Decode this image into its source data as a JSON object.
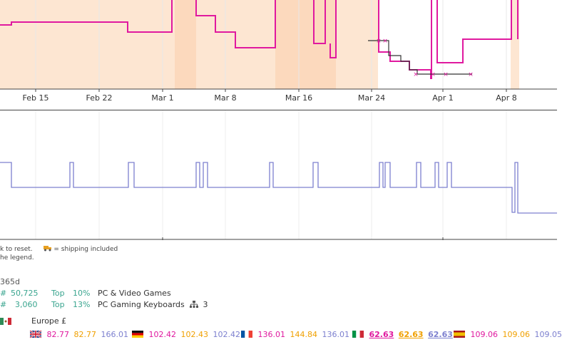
{
  "price_chart": {
    "x_ticks": [
      "Feb 15",
      "Feb 22",
      "Mar 1",
      "Mar 8",
      "Mar 16",
      "Mar 24",
      "Apr 1",
      "Apr 8"
    ],
    "colors": {
      "amazon_fill": "#fde6d2",
      "new": "#e0199f",
      "used": "#333333",
      "grid": "#e8e8e8"
    }
  },
  "rank_chart": {
    "color": "#7d80cf"
  },
  "chart_data": [
    {
      "type": "line",
      "title": "",
      "x": [
        "Feb 15",
        "Feb 22",
        "Mar 1",
        "Mar 8",
        "Mar 16",
        "Mar 24",
        "Apr 1",
        "Apr 8"
      ],
      "series": [
        {
          "values": [
            32,
            32,
            45,
            61,
            67,
            84,
            88,
            54
          ]
        },
        {
          "values": [
            null,
            null,
            null,
            null,
            null,
            57,
            104,
            null
          ]
        }
      ]
    },
    {
      "type": "line",
      "title": "",
      "x": [
        "Feb 15",
        "Feb 22",
        "Mar 1",
        "Mar 8",
        "Mar 16",
        "Mar 24",
        "Apr 1",
        "Apr 8"
      ],
      "series": [
        {
          "values": [
            263,
            263,
            263,
            263,
            263,
            263,
            263,
            299
          ]
        }
      ]
    }
  ],
  "hints": {
    "reset": "k to reset.",
    "shipping": "= shipping included",
    "legend": "he legend."
  },
  "stats": {
    "period": "365d",
    "rows": [
      {
        "prefix": "#",
        "rank": "50,725",
        "top_label": "Top",
        "top_pct": "10%",
        "category": "PC & Video Games"
      },
      {
        "prefix": "#",
        "rank": "3,060",
        "top_label": "Top",
        "top_pct": "13%",
        "category": "PC Gaming Keyboards",
        "sub_count": "3"
      }
    ]
  },
  "marketplaces": {
    "region_label": "Europe £",
    "countries": [
      {
        "flag": "uk-flag-icon",
        "new": "82.77",
        "amazon": "82.77",
        "used": "166.01"
      },
      {
        "flag": "germany-flag-icon",
        "new": "102.42",
        "amazon": "102.43",
        "used": "102.42"
      },
      {
        "flag": "france-flag-icon",
        "new": "136.01",
        "amazon": "144.84",
        "used": "136.01"
      },
      {
        "flag": "italy-flag-icon",
        "new": "62.63",
        "amazon": "62.63",
        "used": "62.63"
      },
      {
        "flag": "spain-flag-icon",
        "new": "109.06",
        "amazon": "109.06",
        "used": "109.05"
      }
    ]
  }
}
